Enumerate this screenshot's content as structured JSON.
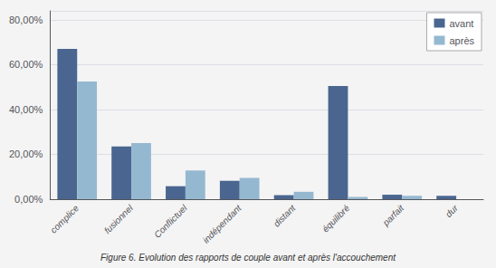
{
  "chart_data": {
    "type": "bar",
    "caption": "Figure 6. Evolution des rapports de couple avant et après l'accouchement",
    "categories": [
      "complice",
      "fusionnel",
      "Conflictuel",
      "indépendant",
      "distant",
      "équilibré",
      "parfait",
      "dur"
    ],
    "series": [
      {
        "name": "avant",
        "color": "#4a6690",
        "values": [
          0.67,
          0.235,
          0.058,
          0.082,
          0.018,
          0.505,
          0.02,
          0.015
        ]
      },
      {
        "name": "après",
        "color": "#95b8d1",
        "values": [
          0.525,
          0.25,
          0.128,
          0.095,
          0.033,
          0.01,
          0.015,
          0.0
        ]
      }
    ],
    "ylim": [
      0,
      0.84
    ],
    "yticks": [
      {
        "value": 0.0,
        "label": "0,00%"
      },
      {
        "value": 0.2,
        "label": "20,00%"
      },
      {
        "value": 0.4,
        "label": "40,00%"
      },
      {
        "value": 0.6,
        "label": "60,00%"
      },
      {
        "value": 0.8,
        "label": "80,00%"
      }
    ],
    "grid": true,
    "legend": "upper right",
    "background_color": "#f4f4f4"
  }
}
